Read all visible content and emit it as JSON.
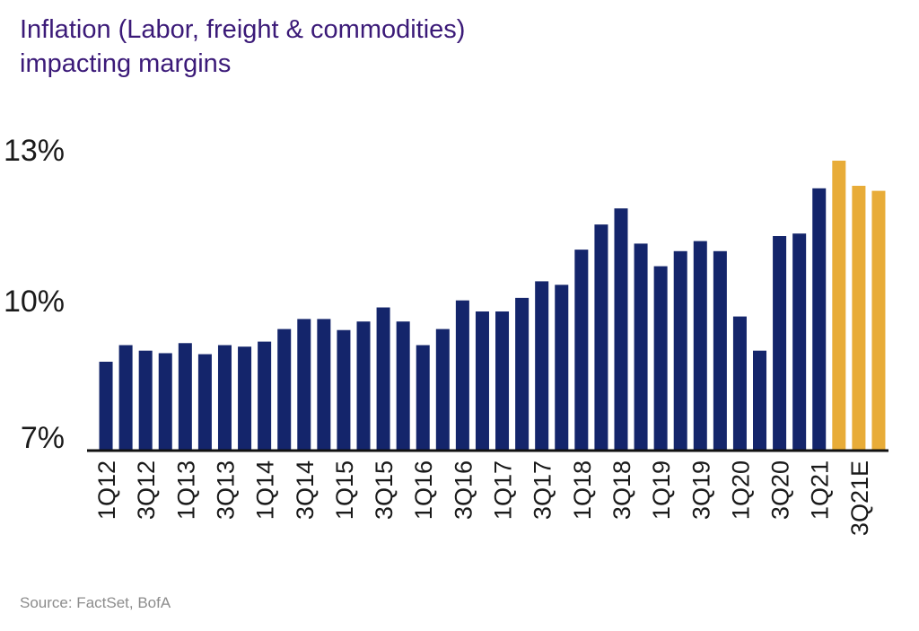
{
  "title_line1": "Inflation (Labor, freight & commodities)",
  "title_line2": "impacting margins",
  "source": "Source: FactSet, BofA",
  "colors": {
    "actual": "#14256b",
    "estimate": "#e8ac38",
    "title": "#3b1a78"
  },
  "chart_data": {
    "type": "bar",
    "title": "Inflation (Labor, freight & commodities) impacting margins",
    "ylim": [
      7,
      13
    ],
    "yticks": [
      "7%",
      "10%",
      "13%"
    ],
    "xticklabels": [
      "1Q12",
      "3Q12",
      "1Q13",
      "3Q13",
      "1Q14",
      "3Q14",
      "1Q15",
      "3Q15",
      "1Q16",
      "3Q16",
      "1Q17",
      "3Q17",
      "1Q18",
      "3Q18",
      "1Q19",
      "3Q19",
      "1Q20",
      "3Q20",
      "1Q21",
      "3Q21E"
    ],
    "categories": [
      "1Q12",
      "2Q12",
      "3Q12",
      "4Q12",
      "1Q13",
      "2Q13",
      "3Q13",
      "4Q13",
      "1Q14",
      "2Q14",
      "3Q14",
      "4Q14",
      "1Q15",
      "2Q15",
      "3Q15",
      "4Q15",
      "1Q16",
      "2Q16",
      "3Q16",
      "4Q16",
      "1Q17",
      "2Q17",
      "3Q17",
      "4Q17",
      "1Q18",
      "2Q18",
      "3Q18",
      "4Q18",
      "1Q19",
      "2Q19",
      "3Q19",
      "4Q19",
      "1Q20",
      "2Q20",
      "3Q20",
      "4Q20",
      "1Q21",
      "2Q21E",
      "3Q21E",
      "4Q21E"
    ],
    "values": [
      8.75,
      9.08,
      8.97,
      8.92,
      9.12,
      8.9,
      9.08,
      9.05,
      9.15,
      9.4,
      9.6,
      9.6,
      9.38,
      9.55,
      9.83,
      9.55,
      9.08,
      9.4,
      9.97,
      9.75,
      9.75,
      10.02,
      10.35,
      10.28,
      10.98,
      11.48,
      11.8,
      11.1,
      10.65,
      10.95,
      11.15,
      10.95,
      9.65,
      8.97,
      11.25,
      11.3,
      12.2,
      12.75,
      12.25,
      12.15
    ],
    "estimate_from_index": 37,
    "grid": false
  }
}
